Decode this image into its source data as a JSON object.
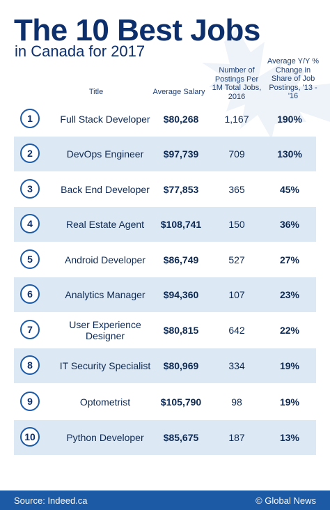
{
  "header": {
    "title": "The 10 Best Jobs",
    "subtitle": "in Canada for 2017"
  },
  "columns": {
    "title": "Title",
    "salary": "Average Salary",
    "postings": "Number of Postings Per 1M Total Jobs, 2016",
    "change": "Average Y/Y % Change in Share of Job Postings, '13 - '16"
  },
  "colors": {
    "navy_text": "#0d2f6b",
    "accent_blue": "#1d5aa6",
    "row_shade": "#dce8f4",
    "leaf_tint": "#eef3f9"
  },
  "chart_data": {
    "type": "table",
    "title": "The 10 Best Jobs",
    "subtitle": "in Canada for 2017",
    "columns": [
      "Title",
      "Average Salary",
      "Number of Postings Per 1M Total Jobs, 2016",
      "Average Y/Y % Change in Share of Job Postings, '13 - '16"
    ],
    "rows": [
      {
        "rank": "1",
        "title": "Full Stack Developer",
        "salary": "$80,268",
        "postings": "1,167",
        "change": "190%"
      },
      {
        "rank": "2",
        "title": "DevOps Engineer",
        "salary": "$97,739",
        "postings": "709",
        "change": "130%"
      },
      {
        "rank": "3",
        "title": "Back End Developer",
        "salary": "$77,853",
        "postings": "365",
        "change": "45%"
      },
      {
        "rank": "4",
        "title": "Real Estate Agent",
        "salary": "$108,741",
        "postings": "150",
        "change": "36%"
      },
      {
        "rank": "5",
        "title": "Android Developer",
        "salary": "$86,749",
        "postings": "527",
        "change": "27%"
      },
      {
        "rank": "6",
        "title": "Analytics Manager",
        "salary": "$94,360",
        "postings": "107",
        "change": "23%"
      },
      {
        "rank": "7",
        "title": "User Experience Designer",
        "salary": "$80,815",
        "postings": "642",
        "change": "22%"
      },
      {
        "rank": "8",
        "title": "IT Security Specialist",
        "salary": "$80,969",
        "postings": "334",
        "change": "19%"
      },
      {
        "rank": "9",
        "title": "Optometrist",
        "salary": "$105,790",
        "postings": "98",
        "change": "19%"
      },
      {
        "rank": "10",
        "title": "Python Developer",
        "salary": "$85,675",
        "postings": "187",
        "change": "13%"
      }
    ]
  },
  "footer": {
    "source": "Source: Indeed.ca",
    "brand": "© Global News"
  }
}
